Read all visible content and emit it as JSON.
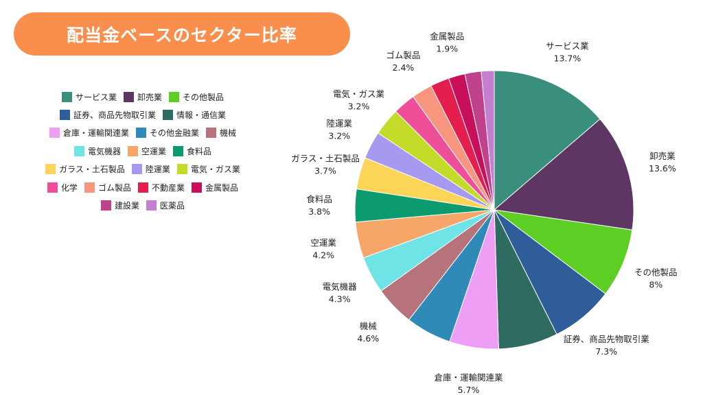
{
  "header": {
    "title": "配当金ベースのセクター比率"
  },
  "chart_data": {
    "type": "pie",
    "title": "配当金ベースのセクター比率",
    "legend_position": "left",
    "start_angle": "top",
    "direction": "clockwise",
    "slices": [
      {
        "name": "サービス業",
        "value": 13.7,
        "label": "13.7%",
        "color": "#3a8f7c"
      },
      {
        "name": "卸売業",
        "value": 13.6,
        "label": "13.6%",
        "color": "#5e3664"
      },
      {
        "name": "その他製品",
        "value": 8,
        "label": "8%",
        "color": "#5dcf24"
      },
      {
        "name": "証券、商品先物取引業",
        "value": 7.3,
        "label": "7.3%",
        "color": "#2f5d9a"
      },
      {
        "name": "情報・通信業",
        "value": 6.9,
        "label": "",
        "color": "#2e6b60"
      },
      {
        "name": "倉庫・運輸関連業",
        "value": 5.7,
        "label": "5.7%",
        "color": "#ee9ff5"
      },
      {
        "name": "その他金融業",
        "value": 5.3,
        "label": "",
        "color": "#2f8ab8"
      },
      {
        "name": "機械",
        "value": 4.6,
        "label": "4.6%",
        "color": "#b7737c"
      },
      {
        "name": "電気機器",
        "value": 4.3,
        "label": "4.3%",
        "color": "#6fe3e5"
      },
      {
        "name": "空運業",
        "value": 4.2,
        "label": "4.2%",
        "color": "#f7a66a"
      },
      {
        "name": "食料品",
        "value": 3.8,
        "label": "3.8%",
        "color": "#0c9b6e"
      },
      {
        "name": "ガラス・土石製品",
        "value": 3.7,
        "label": "3.7%",
        "color": "#fcd457"
      },
      {
        "name": "陸運業",
        "value": 3.2,
        "label": "3.2%",
        "color": "#a69af0"
      },
      {
        "name": "電気・ガス業",
        "value": 3.2,
        "label": "3.2%",
        "color": "#c5db2a"
      },
      {
        "name": "化学",
        "value": 2.6,
        "label": "",
        "color": "#ef4f98"
      },
      {
        "name": "ゴム製品",
        "value": 2.4,
        "label": "2.4%",
        "color": "#f7957e"
      },
      {
        "name": "不動産業",
        "value": 2.2,
        "label": "",
        "color": "#e41f4f"
      },
      {
        "name": "金属製品",
        "value": 1.9,
        "label": "1.9%",
        "color": "#c80f5a"
      },
      {
        "name": "建設業",
        "value": 1.9,
        "label": "",
        "color": "#c0428d"
      },
      {
        "name": "医薬品",
        "value": 1.5,
        "label": "",
        "color": "#c57fd0"
      }
    ],
    "legend_rows": [
      [
        "サービス業",
        "卸売業",
        "その他製品"
      ],
      [
        "証券、商品先物取引業",
        "情報・通信業"
      ],
      [
        "倉庫・運輸関連業",
        "その他金融業",
        "機械"
      ],
      [
        "電気機器",
        "空運業",
        "食料品"
      ],
      [
        "ガラス・土石製品",
        "陸運業",
        "電気・ガス業"
      ],
      [
        "化学",
        "ゴム製品",
        "不動産業",
        "金属製品"
      ],
      [
        "建設業",
        "医薬品"
      ]
    ]
  }
}
